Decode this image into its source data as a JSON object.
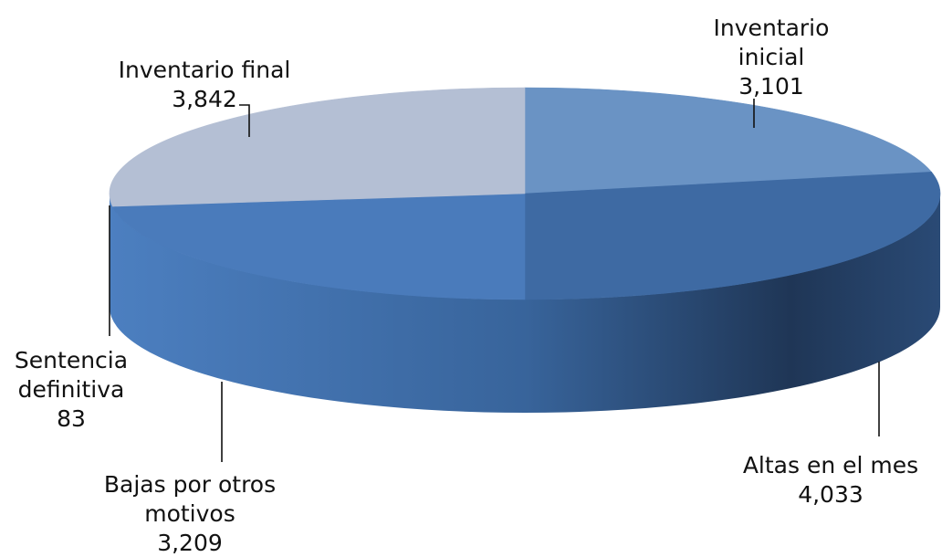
{
  "chart_data": {
    "type": "pie",
    "style": "3d",
    "slices": [
      {
        "label_lines": [
          "Inventario",
          "inicial"
        ],
        "value": 3101,
        "value_label": "3,101",
        "color": "#6a93c4"
      },
      {
        "label_lines": [
          "Altas en el mes"
        ],
        "value": 4033,
        "value_label": "4,033",
        "color": "#3e6aa3"
      },
      {
        "label_lines": [
          "Bajas por otros",
          "motivos"
        ],
        "value": 3209,
        "value_label": "3,209",
        "color": "#4a7bbb"
      },
      {
        "label_lines": [
          "Sentencia",
          "definitiva"
        ],
        "value": 83,
        "value_label": "83",
        "color": "#4a7bbb"
      },
      {
        "label_lines": [
          "Inventario final"
        ],
        "value": 3842,
        "value_label": "3,842",
        "color": "#b4bfd4"
      }
    ]
  }
}
